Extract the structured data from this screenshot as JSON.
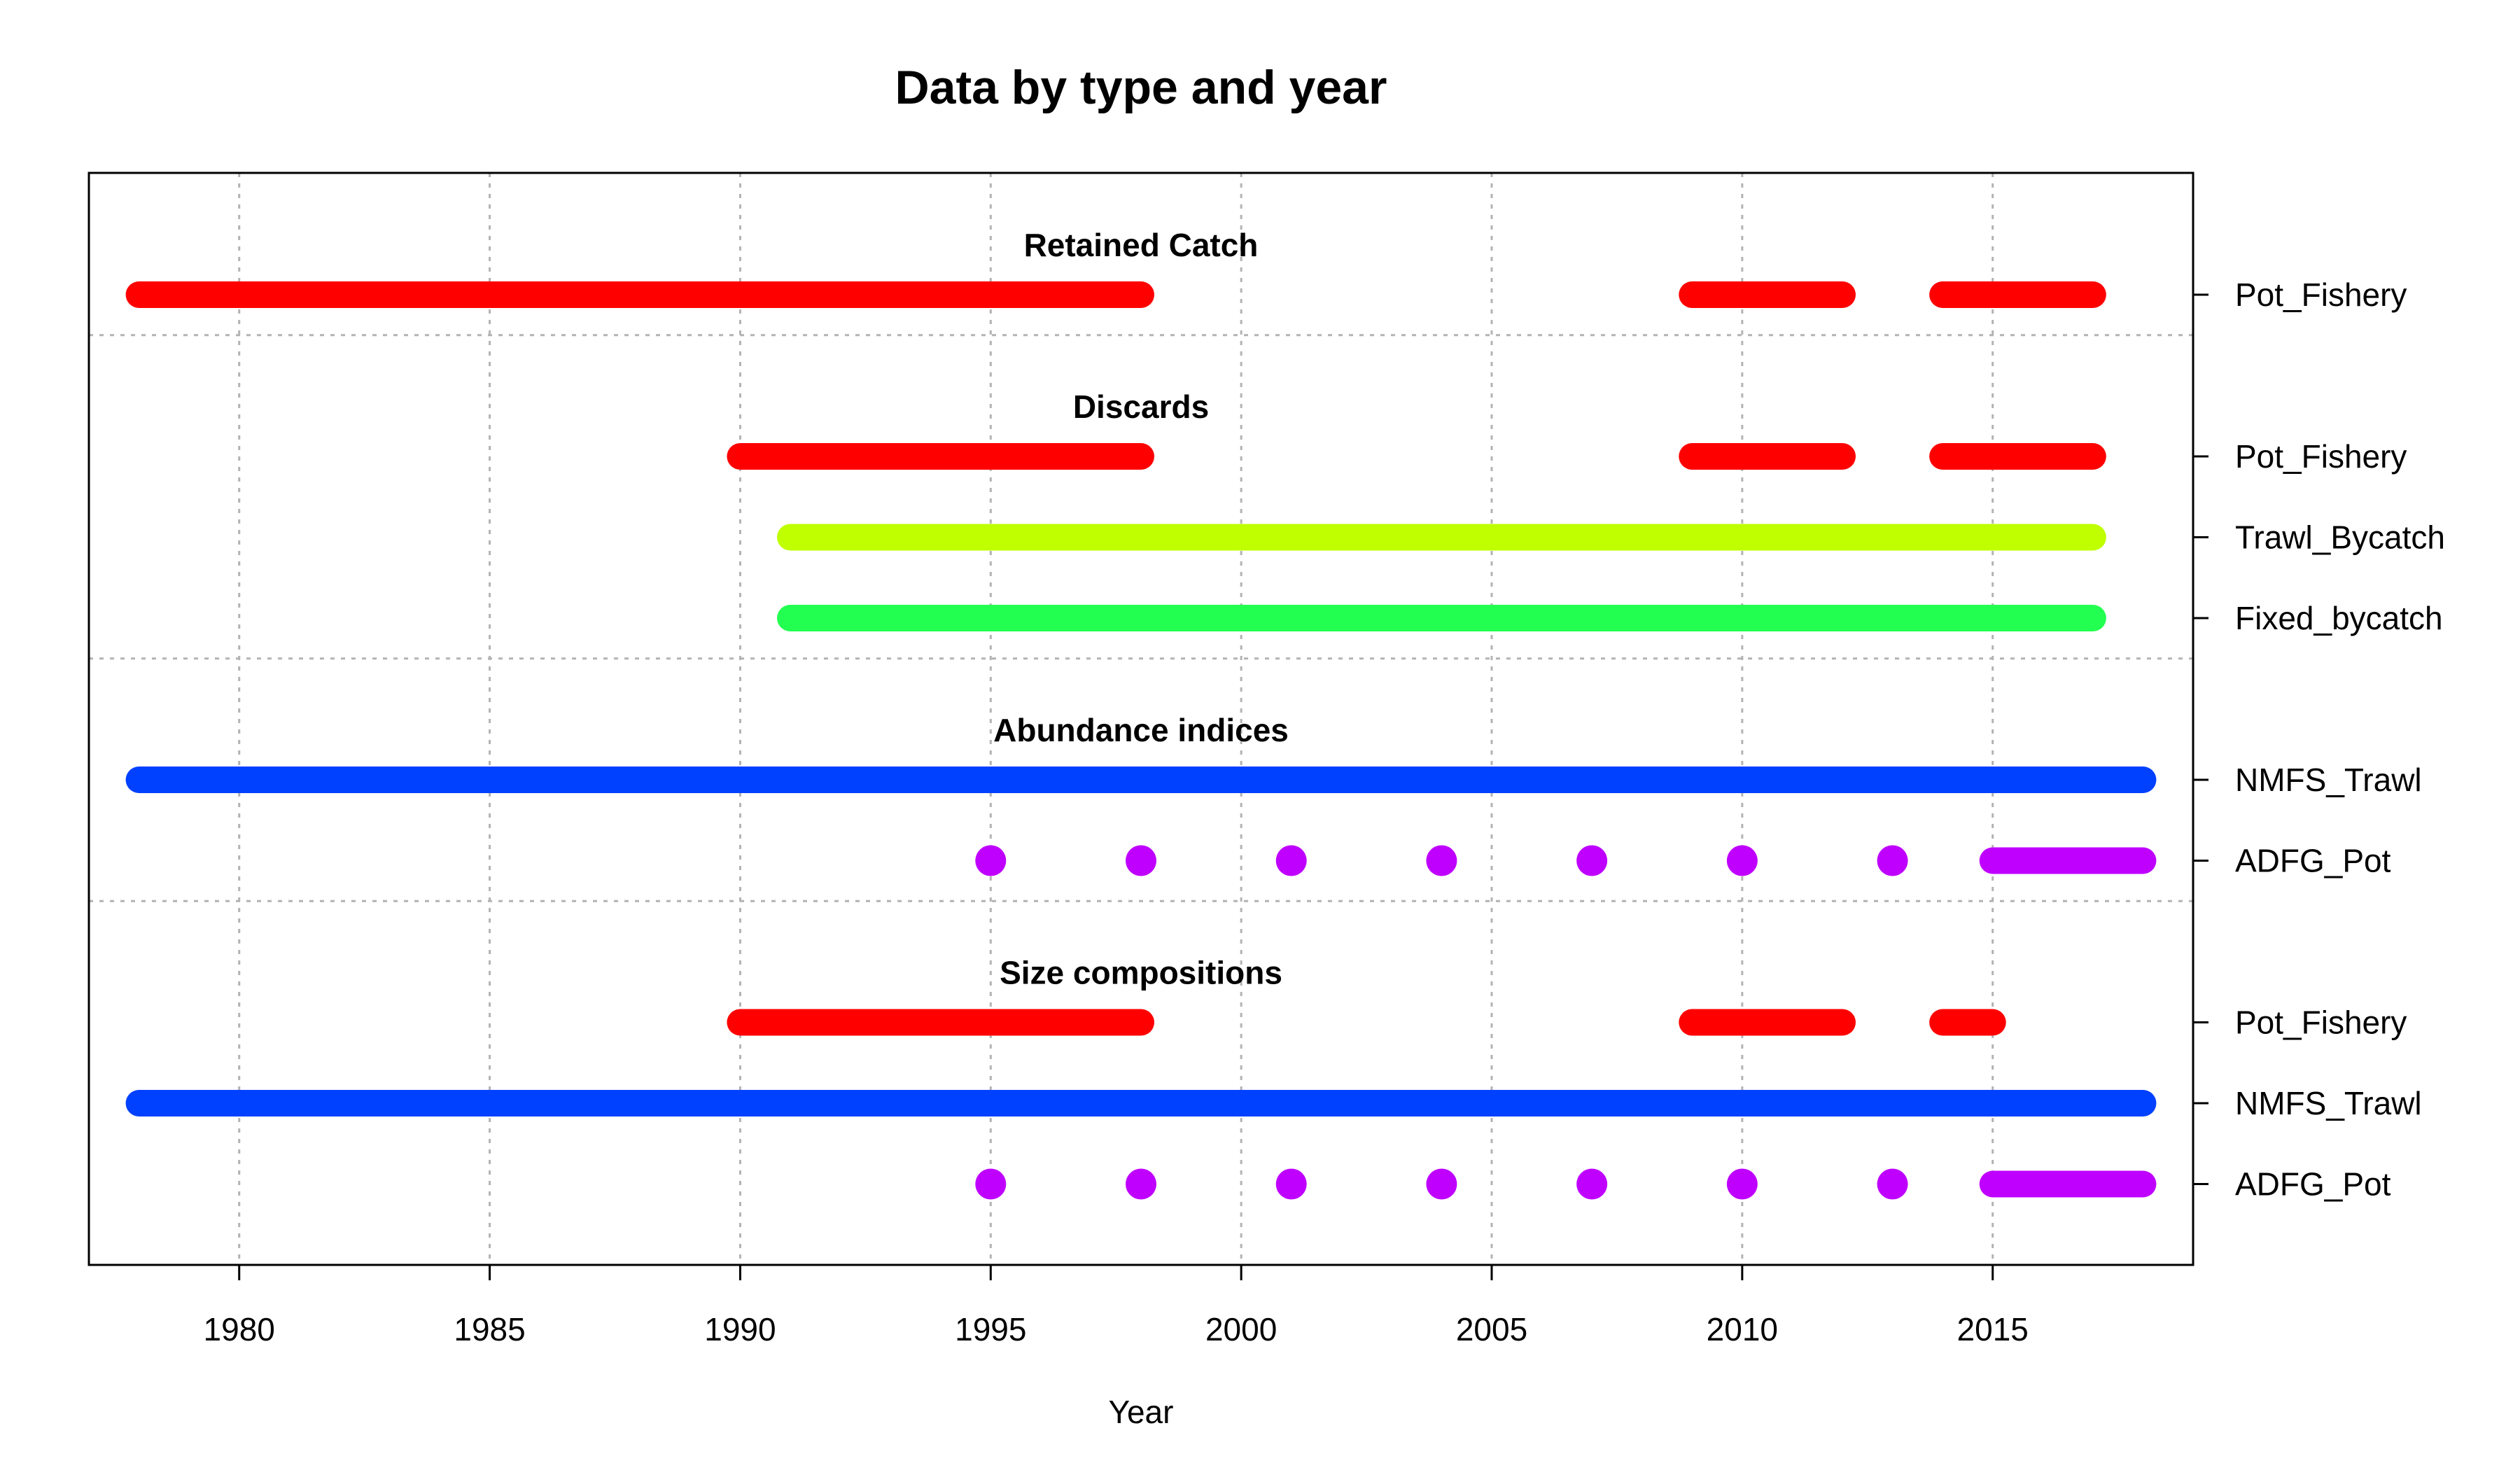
{
  "chart_data": {
    "type": "timeline",
    "title": "Data by type and year",
    "xlabel": "Year",
    "xlim": [
      1977,
      2019
    ],
    "x_ticks": [
      1980,
      1985,
      1990,
      1995,
      2000,
      2005,
      2010,
      2015
    ],
    "grid": true,
    "sections": [
      {
        "name": "Retained Catch",
        "rows": [
          {
            "name": "Pot_Fishery",
            "color": "#FF0000",
            "segments": [
              [
                1978,
                1998
              ],
              [
                2009,
                2012
              ],
              [
                2014,
                2017
              ]
            ],
            "points": []
          }
        ]
      },
      {
        "name": "Discards",
        "rows": [
          {
            "name": "Pot_Fishery",
            "color": "#FF0000",
            "segments": [
              [
                1990,
                1998
              ],
              [
                2009,
                2012
              ],
              [
                2014,
                2017
              ]
            ],
            "points": []
          },
          {
            "name": "Trawl_Bycatch",
            "color": "#BFFF00",
            "segments": [
              [
                1991,
                2017
              ]
            ],
            "points": []
          },
          {
            "name": "Fixed_bycatch",
            "color": "#22FF50",
            "segments": [
              [
                1991,
                2017
              ]
            ],
            "points": []
          }
        ]
      },
      {
        "name": "Abundance indices",
        "rows": [
          {
            "name": "NMFS_Trawl",
            "color": "#0040FF",
            "segments": [
              [
                1978,
                2018
              ]
            ],
            "points": []
          },
          {
            "name": "ADFG_Pot",
            "color": "#BF00FF",
            "segments": [
              [
                2015,
                2018
              ]
            ],
            "points": [
              1995,
              1998,
              2001,
              2004,
              2007,
              2010,
              2013
            ]
          }
        ]
      },
      {
        "name": "Size compositions",
        "rows": [
          {
            "name": "Pot_Fishery",
            "color": "#FF0000",
            "segments": [
              [
                1990,
                1998
              ],
              [
                2009,
                2012
              ],
              [
                2014,
                2015
              ]
            ],
            "points": []
          },
          {
            "name": "NMFS_Trawl",
            "color": "#0040FF",
            "segments": [
              [
                1978,
                2018
              ]
            ],
            "points": []
          },
          {
            "name": "ADFG_Pot",
            "color": "#BF00FF",
            "segments": [
              [
                2015,
                2018
              ]
            ],
            "points": [
              1995,
              1998,
              2001,
              2004,
              2007,
              2010,
              2013
            ]
          }
        ]
      }
    ]
  }
}
